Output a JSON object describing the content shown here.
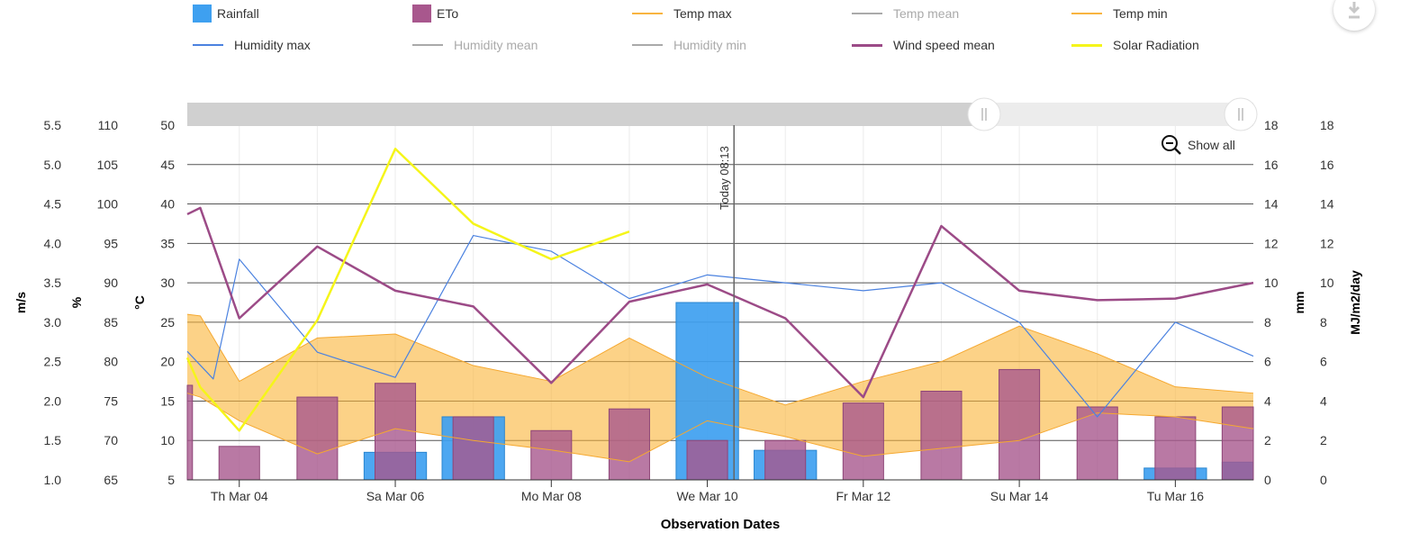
{
  "legend": {
    "items": [
      {
        "key": "rainfall",
        "label": "Rainfall",
        "kind": "bar",
        "color": "#3ea0f0",
        "visible": true
      },
      {
        "key": "eto",
        "label": "ETo",
        "kind": "bar",
        "color": "#a8578d",
        "visible": true
      },
      {
        "key": "temp_max",
        "label": "Temp max",
        "kind": "line",
        "color": "#f8b440",
        "visible": true
      },
      {
        "key": "temp_mean",
        "label": "Temp mean",
        "kind": "line",
        "color": "#aaaaaa",
        "visible": false
      },
      {
        "key": "temp_min",
        "label": "Temp min",
        "kind": "line",
        "color": "#f8b440",
        "visible": true
      },
      {
        "key": "humidity_max",
        "label": "Humidity max",
        "kind": "line",
        "color": "#4b82e0",
        "visible": true
      },
      {
        "key": "humidity_mean",
        "label": "Humidity mean",
        "kind": "line",
        "color": "#aaaaaa",
        "visible": false
      },
      {
        "key": "humidity_min",
        "label": "Humidity min",
        "kind": "line",
        "color": "#aaaaaa",
        "visible": false
      },
      {
        "key": "wind_speed_mean",
        "label": "Wind speed mean",
        "kind": "line",
        "color": "#9c4b87",
        "visible": true
      },
      {
        "key": "solar_radiation",
        "label": "Solar Radiation",
        "kind": "line",
        "color": "#f5f51a",
        "visible": true
      }
    ]
  },
  "controls": {
    "show_all_label": "Show all"
  },
  "chart_data": {
    "type": "bar",
    "title": "",
    "xlabel": "Observation Dates",
    "x_ticks": [
      "Th Mar 04",
      "Sa Mar 06",
      "Mo Mar 08",
      "We Mar 10",
      "Fr Mar 12",
      "Su Mar 14",
      "Tu Mar 16"
    ],
    "x_start": "2021-03-03T08:00",
    "x_end": "2021-03-17T00:00",
    "today_label": "Today 08:13",
    "today_x": "2021-03-10T08:13",
    "axes": {
      "wind": {
        "title": "m/s",
        "ylim": [
          1.0,
          5.5
        ],
        "ticks": [
          "1.0",
          "1.5",
          "2.0",
          "2.5",
          "3.0",
          "3.5",
          "4.0",
          "4.5",
          "5.0",
          "5.5"
        ]
      },
      "humidity": {
        "title": "%",
        "ylim": [
          65,
          110
        ],
        "ticks": [
          "65",
          "70",
          "75",
          "80",
          "85",
          "90",
          "95",
          "100",
          "105",
          "110"
        ]
      },
      "temp": {
        "title": "°C",
        "ylim": [
          5,
          50
        ],
        "ticks": [
          "5",
          "10",
          "15",
          "20",
          "25",
          "30",
          "35",
          "40",
          "45",
          "50"
        ]
      },
      "rain": {
        "title": "mm",
        "ylim": [
          0,
          18
        ],
        "ticks": [
          "0",
          "2",
          "4",
          "6",
          "8",
          "10",
          "12",
          "14",
          "16",
          "18"
        ]
      },
      "solar": {
        "title": "MJ/m2/day",
        "ylim": [
          0,
          18
        ],
        "ticks": [
          "0",
          "2",
          "4",
          "6",
          "8",
          "10",
          "12",
          "14",
          "16",
          "18"
        ]
      }
    },
    "series": [
      {
        "name": "Rainfall",
        "axis": "rain",
        "kind": "bar",
        "x": [
          "2021-03-06",
          "2021-03-07",
          "2021-03-10",
          "2021-03-11",
          "2021-03-16",
          "2021-03-17"
        ],
        "values": [
          1.4,
          3.2,
          9.0,
          1.5,
          0.6,
          0.9
        ]
      },
      {
        "name": "ETo",
        "axis": "rain",
        "kind": "bar",
        "x": [
          "2021-03-03",
          "2021-03-04",
          "2021-03-05",
          "2021-03-06",
          "2021-03-07",
          "2021-03-08",
          "2021-03-09",
          "2021-03-10",
          "2021-03-11",
          "2021-03-12",
          "2021-03-13",
          "2021-03-14",
          "2021-03-15",
          "2021-03-16",
          "2021-03-17"
        ],
        "values": [
          4.8,
          1.7,
          4.2,
          4.9,
          3.2,
          2.5,
          3.6,
          2.0,
          2.0,
          3.9,
          4.5,
          5.6,
          3.7,
          3.2,
          3.7
        ]
      },
      {
        "name": "Temp max",
        "axis": "temp",
        "kind": "line",
        "x": [
          "2021-03-03T08:00",
          "2021-03-03T12:00",
          "2021-03-04T00:00",
          "2021-03-05T00:00",
          "2021-03-06T00:00",
          "2021-03-07T00:00",
          "2021-03-08T00:00",
          "2021-03-09T00:00",
          "2021-03-10T00:00",
          "2021-03-11T00:00",
          "2021-03-12T00:00",
          "2021-03-13T00:00",
          "2021-03-14T00:00",
          "2021-03-15T00:00",
          "2021-03-16T00:00",
          "2021-03-17T00:00"
        ],
        "values": [
          26,
          25.8,
          17.5,
          23,
          23.5,
          19.5,
          17.5,
          23,
          18,
          14.5,
          17.5,
          20,
          24.5,
          21,
          16.8,
          16
        ]
      },
      {
        "name": "Temp min",
        "axis": "temp",
        "kind": "line",
        "x": [
          "2021-03-03T08:00",
          "2021-03-03T12:00",
          "2021-03-04T00:00",
          "2021-03-05T00:00",
          "2021-03-06T00:00",
          "2021-03-07T00:00",
          "2021-03-08T00:00",
          "2021-03-09T00:00",
          "2021-03-10T00:00",
          "2021-03-11T00:00",
          "2021-03-12T00:00",
          "2021-03-13T00:00",
          "2021-03-14T00:00",
          "2021-03-15T00:00",
          "2021-03-16T00:00",
          "2021-03-17T00:00"
        ],
        "values": [
          16,
          15.5,
          12.5,
          8.3,
          11.5,
          10,
          8.8,
          7.3,
          12.5,
          10.5,
          8,
          9,
          10,
          13.5,
          13,
          11.5
        ]
      },
      {
        "name": "Humidity max",
        "axis": "humidity",
        "kind": "line",
        "x": [
          "2021-03-03T08:00",
          "2021-03-03T16:00",
          "2021-03-04T00:00",
          "2021-03-05T00:00",
          "2021-03-06T00:00",
          "2021-03-07T00:00",
          "2021-03-08T00:00",
          "2021-03-09T00:00",
          "2021-03-10T00:00",
          "2021-03-11T00:00",
          "2021-03-12T00:00",
          "2021-03-13T00:00",
          "2021-03-14T00:00",
          "2021-03-15T00:00",
          "2021-03-16T00:00",
          "2021-03-17T00:00"
        ],
        "values": [
          81.3,
          77.8,
          93,
          81.2,
          78,
          96,
          94,
          88,
          91,
          90,
          89,
          90,
          85,
          73,
          85,
          80.7
        ]
      },
      {
        "name": "Wind speed mean",
        "axis": "wind",
        "kind": "line",
        "x": [
          "2021-03-03T08:00",
          "2021-03-03T12:00",
          "2021-03-04T00:00",
          "2021-03-05T00:00",
          "2021-03-06T00:00",
          "2021-03-07T00:00",
          "2021-03-08T00:00",
          "2021-03-09T00:00",
          "2021-03-10T00:00",
          "2021-03-11T00:00",
          "2021-03-12T00:00",
          "2021-03-13T00:00",
          "2021-03-14T00:00",
          "2021-03-15T00:00",
          "2021-03-16T00:00",
          "2021-03-17T00:00"
        ],
        "values": [
          4.37,
          4.45,
          3.05,
          3.96,
          3.4,
          3.2,
          2.23,
          3.26,
          3.48,
          3.05,
          2.05,
          4.22,
          3.4,
          3.28,
          3.3,
          3.5
        ]
      },
      {
        "name": "Solar Radiation",
        "axis": "solar",
        "kind": "line",
        "x": [
          "2021-03-03T08:00",
          "2021-03-03T12:00",
          "2021-03-04T00:00",
          "2021-03-05T00:00",
          "2021-03-06T00:00",
          "2021-03-07T00:00",
          "2021-03-08T00:00",
          "2021-03-09T00:00"
        ],
        "values": [
          6.2,
          4.7,
          2.5,
          8.1,
          16.8,
          13,
          11.2,
          12.6
        ]
      }
    ]
  }
}
